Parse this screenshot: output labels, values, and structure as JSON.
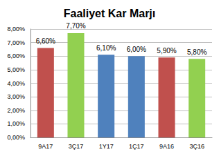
{
  "chart_data": {
    "type": "bar",
    "title": "Faaliyet Kar Marjı",
    "categories": [
      "9A17",
      "3Ç17",
      "1Y17",
      "1Ç17",
      "9A16",
      "3Ç16"
    ],
    "values": [
      6.6,
      7.7,
      6.1,
      6.0,
      5.9,
      5.8
    ],
    "value_labels": [
      "6,60%",
      "7,70%",
      "6,10%",
      "6,00%",
      "5,90%",
      "5,80%"
    ],
    "colors": [
      "#c0504d",
      "#92d050",
      "#4f81bd",
      "#4f81bd",
      "#c0504d",
      "#92d050"
    ],
    "ylim": [
      0,
      8
    ],
    "yticks": [
      {
        "value": 0,
        "label": "0,00%"
      },
      {
        "value": 1,
        "label": "1,00%"
      },
      {
        "value": 2,
        "label": "2,00%"
      },
      {
        "value": 3,
        "label": "3,00%"
      },
      {
        "value": 4,
        "label": "4,00%"
      },
      {
        "value": 5,
        "label": "5,00%"
      },
      {
        "value": 6,
        "label": "6,00%"
      },
      {
        "value": 7,
        "label": "7,00%"
      },
      {
        "value": 8,
        "label": "8,00%"
      }
    ],
    "grid": true,
    "data_labels": true
  }
}
